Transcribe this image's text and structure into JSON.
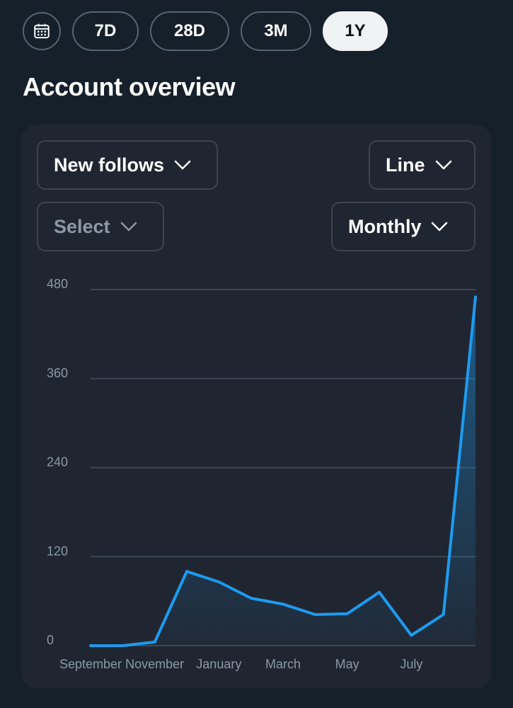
{
  "range_bar": {
    "calendar_icon": "calendar-icon",
    "options": [
      "7D",
      "28D",
      "3M",
      "1Y"
    ],
    "selected": "1Y"
  },
  "page_title": "Account overview",
  "controls": {
    "metric_select": "New follows",
    "chart_type_select": "Line",
    "compare_select_placeholder": "Select",
    "interval_select": "Monthly"
  },
  "colors": {
    "background": "#15202b",
    "card": "#202631",
    "line": "#1d9bf0",
    "gridline": "#3b4754",
    "active_pill": "#eff3f4"
  },
  "chart_data": {
    "type": "area",
    "x": [
      "September",
      "October",
      "November",
      "December",
      "January",
      "February",
      "March",
      "April",
      "May",
      "June",
      "July",
      "August",
      "September"
    ],
    "x_tick_labels": [
      "September",
      "November",
      "January",
      "March",
      "May",
      "July"
    ],
    "series": [
      {
        "values": [
          0,
          0,
          5,
          100,
          86,
          64,
          56,
          42,
          43,
          72,
          14,
          42,
          470
        ]
      }
    ],
    "y_ticks": [
      0,
      120,
      240,
      360,
      480
    ],
    "ylim": [
      0,
      480
    ],
    "grid": true,
    "legend": "none"
  }
}
